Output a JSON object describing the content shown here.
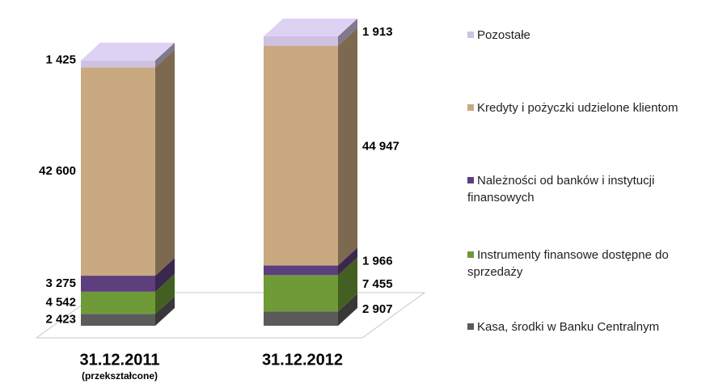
{
  "chart_data": {
    "type": "bar",
    "stacked": true,
    "categories": [
      "31.12.2011",
      "31.12.2012"
    ],
    "annotations": [
      "(przekształcone)"
    ],
    "series": [
      {
        "name": "Kasa, środki w Banku Centralnym",
        "color": "#5a5a5a",
        "values": [
          2423,
          2907
        ],
        "value_labels": [
          "2 423",
          "2 907"
        ]
      },
      {
        "name": "Instrumenty finansowe dostępne do sprzedaży",
        "color": "#6e9a37",
        "values": [
          4542,
          7455
        ],
        "value_labels": [
          "4 542",
          "7 455"
        ]
      },
      {
        "name": "Należności od banków i instytucji finansowych",
        "color": "#5c3f7c",
        "values": [
          3275,
          1966
        ],
        "value_labels": [
          "3 275",
          "1 966"
        ]
      },
      {
        "name": "Kredyty i pożyczki udzielone klientom",
        "color": "#c9a97f",
        "values": [
          42600,
          44947
        ],
        "value_labels": [
          "42 600",
          "44 947"
        ]
      },
      {
        "name": "Pozostałe",
        "color": "#cec2e2",
        "values": [
          1425,
          1913
        ],
        "value_labels": [
          "1 425",
          "1 913"
        ]
      }
    ]
  }
}
